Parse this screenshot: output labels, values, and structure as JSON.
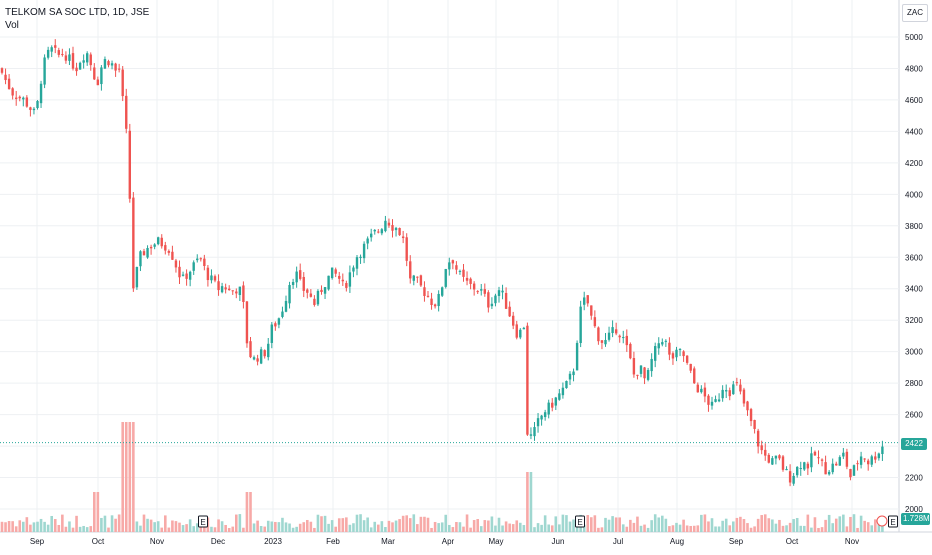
{
  "header": {
    "symbol": "TELKOM SA SOC LTD, 1D, JSE",
    "volume_label": "Vol",
    "currency": "ZAC"
  },
  "last_price_label": "2422",
  "volume_value_label": "1.728M",
  "event_marker": "E",
  "colors": {
    "up": "#26a69a",
    "down": "#ef5350",
    "up_vol": "#9fd7d0",
    "down_vol": "#f7a9a7",
    "grid": "#eef0f3",
    "axis_text": "#131722",
    "last_line": "#26a69a"
  },
  "chart_data": {
    "type": "candlestick",
    "title": "TELKOM SA SOC LTD, 1D, JSE",
    "y_ticks": [
      "5000",
      "4800",
      "4600",
      "4400",
      "4200",
      "4000",
      "3800",
      "3600",
      "3400",
      "3200",
      "3000",
      "2800",
      "2600",
      "2400",
      "2200",
      "2000"
    ],
    "ylim": [
      1950,
      5150
    ],
    "x_ticks": [
      "Sep",
      "Oct",
      "Nov",
      "Dec",
      "2023",
      "Feb",
      "Mar",
      "Apr",
      "May",
      "Jun",
      "Jul",
      "Aug",
      "Sep",
      "Oct",
      "Nov"
    ],
    "last_price": 2422,
    "close_path": [
      [
        0,
        4800
      ],
      [
        6,
        4720
      ],
      [
        12,
        4650
      ],
      [
        18,
        4620
      ],
      [
        24,
        4600
      ],
      [
        30,
        4550
      ],
      [
        36,
        4500
      ],
      [
        40,
        4700
      ],
      [
        46,
        4880
      ],
      [
        52,
        4920
      ],
      [
        58,
        4880
      ],
      [
        64,
        4900
      ],
      [
        70,
        4850
      ],
      [
        76,
        4800
      ],
      [
        82,
        4880
      ],
      [
        88,
        4900
      ],
      [
        92,
        4800
      ],
      [
        97,
        4700
      ],
      [
        103,
        4850
      ],
      [
        110,
        4850
      ],
      [
        116,
        4780
      ],
      [
        120,
        4800
      ],
      [
        124,
        4500
      ],
      [
        128,
        4300
      ],
      [
        133,
        3400
      ],
      [
        140,
        3600
      ],
      [
        146,
        3650
      ],
      [
        152,
        3680
      ],
      [
        158,
        3700
      ],
      [
        164,
        3680
      ],
      [
        170,
        3650
      ],
      [
        176,
        3550
      ],
      [
        182,
        3450
      ],
      [
        188,
        3500
      ],
      [
        194,
        3550
      ],
      [
        200,
        3600
      ],
      [
        206,
        3500
      ],
      [
        212,
        3450
      ],
      [
        218,
        3400
      ],
      [
        224,
        3420
      ],
      [
        230,
        3380
      ],
      [
        236,
        3400
      ],
      [
        242,
        3380
      ],
      [
        248,
        3000
      ],
      [
        254,
        2950
      ],
      [
        260,
        2980
      ],
      [
        266,
        3000
      ],
      [
        272,
        3150
      ],
      [
        278,
        3200
      ],
      [
        284,
        3300
      ],
      [
        290,
        3450
      ],
      [
        296,
        3500
      ],
      [
        302,
        3400
      ],
      [
        308,
        3380
      ],
      [
        314,
        3300
      ],
      [
        320,
        3380
      ],
      [
        326,
        3450
      ],
      [
        332,
        3500
      ],
      [
        338,
        3480
      ],
      [
        344,
        3400
      ],
      [
        350,
        3500
      ],
      [
        356,
        3600
      ],
      [
        362,
        3650
      ],
      [
        368,
        3700
      ],
      [
        374,
        3750
      ],
      [
        380,
        3780
      ],
      [
        386,
        3850
      ],
      [
        392,
        3800
      ],
      [
        398,
        3780
      ],
      [
        404,
        3700
      ],
      [
        410,
        3450
      ],
      [
        416,
        3450
      ],
      [
        422,
        3400
      ],
      [
        428,
        3350
      ],
      [
        434,
        3300
      ],
      [
        440,
        3350
      ],
      [
        446,
        3550
      ],
      [
        452,
        3600
      ],
      [
        458,
        3500
      ],
      [
        464,
        3450
      ],
      [
        470,
        3420
      ],
      [
        476,
        3400
      ],
      [
        482,
        3380
      ],
      [
        488,
        3300
      ],
      [
        494,
        3350
      ],
      [
        500,
        3400
      ],
      [
        506,
        3300
      ],
      [
        512,
        3200
      ],
      [
        518,
        3100
      ],
      [
        524,
        3170
      ],
      [
        526,
        2500
      ],
      [
        532,
        2450
      ],
      [
        538,
        2550
      ],
      [
        544,
        2620
      ],
      [
        550,
        2650
      ],
      [
        556,
        2700
      ],
      [
        562,
        2750
      ],
      [
        568,
        2800
      ],
      [
        574,
        2900
      ],
      [
        580,
        3250
      ],
      [
        586,
        3350
      ],
      [
        592,
        3200
      ],
      [
        598,
        3100
      ],
      [
        604,
        3050
      ],
      [
        610,
        3100
      ],
      [
        616,
        3150
      ],
      [
        622,
        3100
      ],
      [
        628,
        3000
      ],
      [
        634,
        2850
      ],
      [
        640,
        2900
      ],
      [
        646,
        2800
      ],
      [
        652,
        2950
      ],
      [
        658,
        3050
      ],
      [
        664,
        3100
      ],
      [
        670,
        2950
      ],
      [
        676,
        2980
      ],
      [
        682,
        3000
      ],
      [
        688,
        2900
      ],
      [
        694,
        2800
      ],
      [
        700,
        2750
      ],
      [
        706,
        2700
      ],
      [
        712,
        2650
      ],
      [
        718,
        2700
      ],
      [
        724,
        2800
      ],
      [
        730,
        2750
      ],
      [
        736,
        2800
      ],
      [
        742,
        2700
      ],
      [
        748,
        2600
      ],
      [
        754,
        2500
      ],
      [
        760,
        2380
      ],
      [
        766,
        2330
      ],
      [
        772,
        2300
      ],
      [
        778,
        2320
      ],
      [
        784,
        2250
      ],
      [
        790,
        2200
      ],
      [
        796,
        2250
      ],
      [
        802,
        2300
      ],
      [
        808,
        2280
      ],
      [
        814,
        2350
      ],
      [
        820,
        2300
      ],
      [
        826,
        2250
      ],
      [
        832,
        2270
      ],
      [
        838,
        2300
      ],
      [
        844,
        2350
      ],
      [
        850,
        2200
      ],
      [
        856,
        2280
      ],
      [
        862,
        2350
      ],
      [
        868,
        2300
      ],
      [
        874,
        2330
      ],
      [
        880,
        2380
      ],
      [
        885,
        2422
      ]
    ],
    "volume_max": "7.0M"
  }
}
